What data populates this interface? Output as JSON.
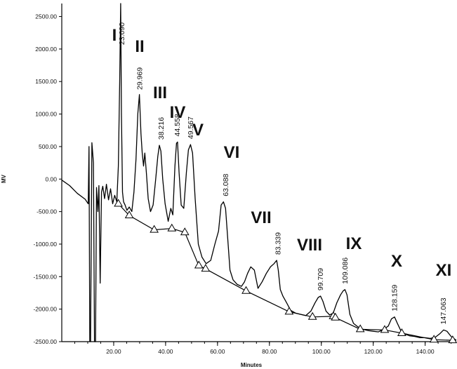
{
  "chart_data": {
    "type": "line",
    "title": "",
    "xlabel": "Minutes",
    "ylabel": "MV",
    "xlim": [
      0,
      152
    ],
    "ylim": [
      -2500,
      2700
    ],
    "x_ticks": [
      "20.00",
      "40.00",
      "60.00",
      "80.00",
      "100.00",
      "120.00",
      "140.00"
    ],
    "x_tick_values": [
      20,
      40,
      60,
      80,
      100,
      120,
      140
    ],
    "y_ticks": [
      "2500.00",
      "2000.00",
      "1500.00",
      "1000.00",
      "500.00",
      "0.00",
      "-500.00",
      "-1000.00",
      "-1500.00",
      "-2000.00",
      "-2500.00"
    ],
    "y_tick_values": [
      2500,
      2000,
      1500,
      1000,
      500,
      0,
      -500,
      -1000,
      -1500,
      -2000,
      -2500
    ],
    "grid": false,
    "legend": "none",
    "series": [
      {
        "x": [
          0,
          3,
          6,
          9,
          10.2,
          10.5,
          10.8,
          11.1,
          11.6,
          12.2,
          12.6,
          13.0,
          13.4,
          13.9,
          14.3,
          14.8,
          15.3,
          15.8,
          16.5,
          17.2,
          18.0,
          18.8,
          19.6,
          20.4,
          21.2,
          21.8,
          22.3,
          22.7,
          23.0,
          23.4,
          23.8,
          24.4,
          25.1,
          26.0,
          27.0,
          27.8,
          28.6,
          29.3,
          29.9,
          30.5,
          31.0,
          31.5,
          32.0,
          32.6,
          33.3,
          34.2,
          35.2,
          36.2,
          37.0,
          37.6,
          38.2,
          38.9,
          39.8,
          41.0,
          42.0,
          42.8,
          43.6,
          44.2,
          44.6,
          45.2,
          46.0,
          47.0,
          48.0,
          48.8,
          49.6,
          50.4,
          51.4,
          52.6,
          54.0,
          55.6,
          57.4,
          59.0,
          60.4,
          61.4,
          62.3,
          63.1,
          63.9,
          64.8,
          66.0,
          67.6,
          69.2,
          70.4,
          71.6,
          72.8,
          74.2,
          75.6,
          77.2,
          78.8,
          80.4,
          81.8,
          82.8,
          83.4,
          84.2,
          85.2,
          86.6,
          88.2,
          90.0,
          92.0,
          94.0,
          96.0,
          97.6,
          98.8,
          99.7,
          100.6,
          101.8,
          103.2,
          104.6,
          106.0,
          107.4,
          108.4,
          109.1,
          109.9,
          111.0,
          112.4,
          114.0,
          116.0,
          118.0,
          120.0,
          122.0,
          124.0,
          125.8,
          127.0,
          128.2,
          129.3,
          130.6,
          132.0,
          134.0,
          136.0,
          138.0,
          140.0,
          142.0,
          144.0,
          145.6,
          147.1,
          148.4,
          150.0,
          152.0
        ],
        "y": [
          -15,
          -100,
          -220,
          -310,
          -380,
          500,
          -2500,
          -2500,
          560,
          250,
          -2500,
          -2500,
          -130,
          -500,
          -100,
          -1600,
          -200,
          -110,
          -300,
          -80,
          -320,
          -150,
          -380,
          -250,
          -350,
          200,
          1500,
          2700,
          1000,
          -200,
          -350,
          -400,
          -480,
          -430,
          -500,
          -200,
          300,
          1000,
          1300,
          700,
          400,
          200,
          400,
          100,
          -300,
          -500,
          -400,
          0,
          350,
          520,
          430,
          0,
          -380,
          -650,
          -450,
          -550,
          200,
          550,
          570,
          100,
          -400,
          -450,
          100,
          450,
          530,
          400,
          -300,
          -1000,
          -1200,
          -1300,
          -1250,
          -1000,
          -800,
          -400,
          -350,
          -450,
          -900,
          -1400,
          -1550,
          -1620,
          -1650,
          -1580,
          -1450,
          -1350,
          -1400,
          -1680,
          -1580,
          -1450,
          -1350,
          -1300,
          -1250,
          -1400,
          -1700,
          -1800,
          -1900,
          -2020,
          -2060,
          -2080,
          -2100,
          -2030,
          -1900,
          -1820,
          -1800,
          -1880,
          -2030,
          -2090,
          -2060,
          -1900,
          -1780,
          -1720,
          -1700,
          -1780,
          -2080,
          -2220,
          -2270,
          -2310,
          -2330,
          -2340,
          -2350,
          -2310,
          -2260,
          -2150,
          -2120,
          -2220,
          -2330,
          -2380,
          -2410,
          -2420,
          -2440,
          -2440,
          -2450,
          -2430,
          -2380,
          -2320,
          -2340,
          -2420,
          -2480
        ]
      }
    ],
    "baseline_x": [
      21.8,
      26.0,
      35.6,
      42.4,
      47.4,
      52.8,
      55.4,
      71.0,
      87.6,
      96.6,
      104.6,
      105.4,
      115.0,
      124.4,
      131.0,
      143.4,
      150.6
    ],
    "baseline_y": [
      -380,
      -560,
      -780,
      -760,
      -820,
      -1330,
      -1380,
      -1720,
      -2040,
      -2120,
      -2110,
      -2130,
      -2310,
      -2320,
      -2370,
      -2470,
      -2480
    ],
    "peaks": [
      {
        "label": "I",
        "rt": "23.090",
        "x": 23.09,
        "y": 2700
      },
      {
        "label": "II",
        "rt": "29.969",
        "x": 29.969,
        "y": 1300
      },
      {
        "label": "III",
        "rt": "38.216",
        "x": 38.216,
        "y": 520
      },
      {
        "label": "IV",
        "rt": "44.558",
        "x": 44.558,
        "y": 570
      },
      {
        "label": "V",
        "rt": "49.567",
        "x": 49.567,
        "y": 530
      },
      {
        "label": "VI",
        "rt": "63.088",
        "x": 63.088,
        "y": -350
      },
      {
        "label": "VII",
        "rt": "83.339",
        "x": 83.339,
        "y": -1250
      },
      {
        "label": "VIII",
        "rt": "99.709",
        "x": 99.709,
        "y": -1800
      },
      {
        "label": "IX",
        "rt": "109.086",
        "x": 109.086,
        "y": -1700
      },
      {
        "label": "X",
        "rt": "128.159",
        "x": 128.159,
        "y": -2120
      },
      {
        "label": "XI",
        "rt": "147.063",
        "x": 147.063,
        "y": -2320
      }
    ]
  }
}
